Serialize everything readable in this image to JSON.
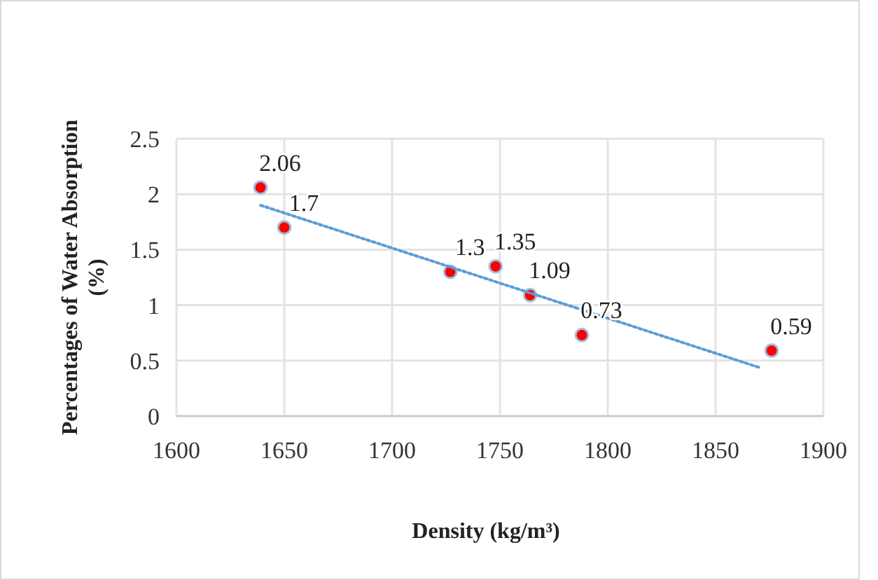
{
  "chart_data": {
    "type": "scatter",
    "xlabel": "Density (kg/m³)",
    "ylabel": "Percentages of Water Absorption (%)",
    "xlim": [
      1600,
      1900
    ],
    "xticks": [
      1600,
      1650,
      1700,
      1750,
      1800,
      1850,
      1900
    ],
    "ylim": [
      0,
      2.5
    ],
    "yticks": [
      0,
      0.5,
      1,
      1.5,
      2,
      2.5
    ],
    "grid": true,
    "series": [
      {
        "color": "#ff0000",
        "marker": "circle",
        "x": [
          1639,
          1650,
          1727,
          1748,
          1764,
          1788,
          1876
        ],
        "values": [
          2.06,
          1.7,
          1.3,
          1.35,
          1.09,
          0.73,
          0.59
        ],
        "value_labels": [
          "2.06",
          "1.7",
          "1.3",
          "1.35",
          "1.09",
          "0.73",
          "0.59"
        ]
      },
      {
        "type": "line",
        "color": "#5b9bd5",
        "line_style": "dotted",
        "marker": "none",
        "x": [
          1639,
          1870
        ],
        "values": [
          1.9,
          0.44
        ]
      }
    ]
  }
}
